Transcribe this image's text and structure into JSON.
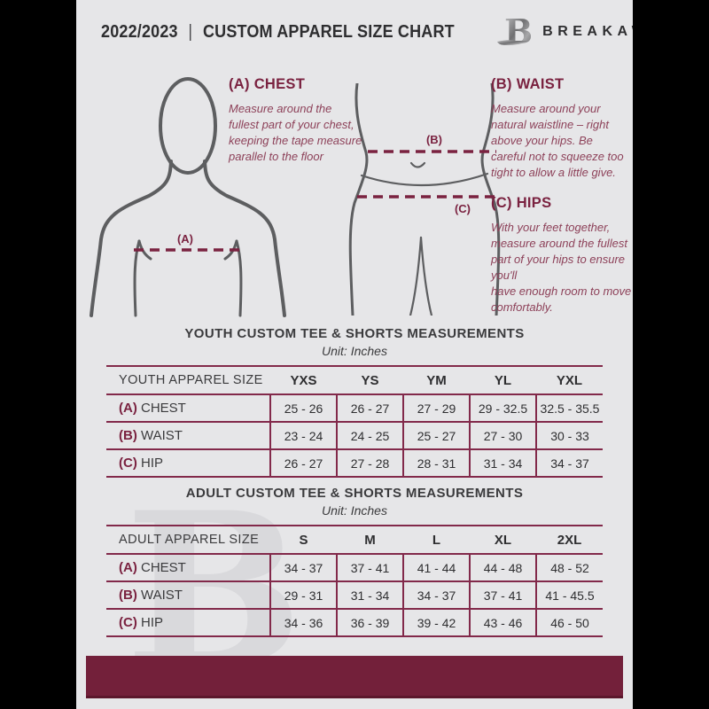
{
  "masthead": {
    "season": "2022/2023",
    "divider": "|",
    "title": "CUSTOM APPAREL SIZE CHART",
    "brand": "BREAKAWAY",
    "logo_letter": "B"
  },
  "guides": [
    {
      "heading": "(A) CHEST",
      "body": "Measure around the fullest part of your chest, keeping the tape measure parallel to the floor"
    },
    {
      "heading": "(B) WAIST",
      "body": "Measure around your natural waistline – right above your hips. Be careful not to squeeze too tight to allow a little give."
    },
    {
      "heading": "(C) HIPS",
      "body": "With your feet together, measure around the fullest part of your hips to ensure you'll\nhave enough room to move comfortably."
    }
  ],
  "diagram_labels": {
    "chest": "(A)",
    "waist": "(B)",
    "hips": "(C)"
  },
  "tables": [
    {
      "title": "YOUTH CUSTOM TEE & SHORTS MEASUREMENTS",
      "unit": "Unit: Inches",
      "header": [
        "YOUTH APPAREL SIZE",
        "YXS",
        "YS",
        "YM",
        "YL",
        "YXL"
      ],
      "rows": [
        {
          "prefix": "(A)",
          "label": "CHEST",
          "values": [
            "25 - 26",
            "26 - 27",
            "27 - 29",
            "29 - 32.5",
            "32.5 - 35.5"
          ]
        },
        {
          "prefix": "(B)",
          "label": "WAIST",
          "values": [
            "23 - 24",
            "24 - 25",
            "25 - 27",
            "27 - 30",
            "30 - 33"
          ]
        },
        {
          "prefix": "(C)",
          "label": "HIP",
          "values": [
            "26 - 27",
            "27 - 28",
            "28 - 31",
            "31 - 34",
            "34 - 37"
          ]
        }
      ]
    },
    {
      "title": "ADULT CUSTOM TEE & SHORTS MEASUREMENTS",
      "unit": "Unit: Inches",
      "header": [
        "ADULT APPAREL SIZE",
        "S",
        "M",
        "L",
        "XL",
        "2XL"
      ],
      "rows": [
        {
          "prefix": "(A)",
          "label": "CHEST",
          "values": [
            "34 - 37",
            "37 - 41",
            "41 - 44",
            "44 - 48",
            "48 - 52"
          ]
        },
        {
          "prefix": "(B)",
          "label": "WAIST",
          "values": [
            "29 - 31",
            "31 - 34",
            "34 - 37",
            "37 - 41",
            "41 - 45.5"
          ]
        },
        {
          "prefix": "(C)",
          "label": "HIP",
          "values": [
            "34 - 36",
            "36 - 39",
            "39 - 42",
            "43 - 46",
            "46 - 50"
          ]
        }
      ]
    }
  ],
  "watermark_letter": "B",
  "colors": {
    "maroon": "#73203a",
    "maroon_border": "#82294a",
    "maroon_text": "#7a2240",
    "maroon_body": "#8d4159",
    "ink": "#2e2e30",
    "page_bg": "#e6e6e8",
    "canvas_bg": "#000000",
    "diagram_stroke": "#5d5e60",
    "watermark": "#d9d9dc"
  }
}
